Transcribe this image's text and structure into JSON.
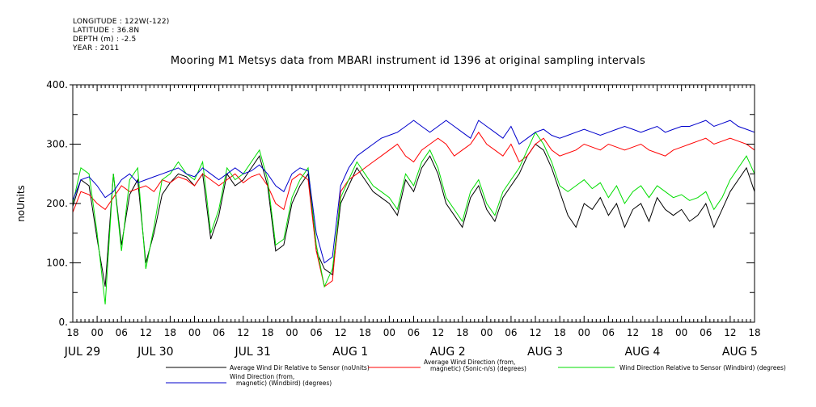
{
  "meta": {
    "longitude": "LONGITUDE : 122W(-122)",
    "latitude": "LATITUDE : 36.8N",
    "depth": "DEPTH (m) : -2.5",
    "year": "YEAR : 2011"
  },
  "chart_data": {
    "type": "line",
    "title": "Mooring M1 Metsys data from MBARI instrument id 1396 at original sampling intervals",
    "ylabel": "noUnits",
    "xlabel": "",
    "ylim": [
      0,
      400
    ],
    "yticks": [
      0,
      100,
      200,
      300,
      400
    ],
    "ytick_labels": [
      "0.",
      "100.",
      "200.",
      "300.",
      "400."
    ],
    "xlim_hours": [
      0,
      168
    ],
    "x_hour_ticks": [
      "18",
      "00",
      "06",
      "12",
      "18",
      "00",
      "06",
      "12",
      "18",
      "00",
      "06",
      "12",
      "18",
      "00",
      "06",
      "12",
      "18",
      "00",
      "06",
      "12",
      "18",
      "00",
      "06",
      "12",
      "18",
      "00",
      "06",
      "12",
      "18"
    ],
    "x_day_labels": [
      {
        "label": "JUL 29",
        "hour": 0
      },
      {
        "label": "JUL 30",
        "hour": 18
      },
      {
        "label": "JUL 31",
        "hour": 42
      },
      {
        "label": "AUG  1",
        "hour": 66
      },
      {
        "label": "AUG  2",
        "hour": 90
      },
      {
        "label": "AUG  3",
        "hour": 114
      },
      {
        "label": "AUG  4",
        "hour": 138
      },
      {
        "label": "AUG  5",
        "hour": 162
      }
    ],
    "grid": false,
    "legend_position": "bottom",
    "series": [
      {
        "name": "Average Wind Dir Relative to Sensor (noUnits)",
        "color": "#000000",
        "x": [
          0,
          2,
          4,
          6,
          8,
          10,
          12,
          14,
          16,
          18,
          20,
          22,
          24,
          26,
          28,
          30,
          32,
          34,
          36,
          38,
          40,
          42,
          44,
          46,
          48,
          50,
          52,
          54,
          56,
          58,
          60,
          62,
          64,
          66,
          68,
          70,
          72,
          74,
          76,
          78,
          80,
          82,
          84,
          86,
          88,
          90,
          92,
          94,
          96,
          98,
          100,
          102,
          104,
          106,
          108,
          110,
          112,
          114,
          116,
          118,
          120,
          122,
          124,
          126,
          128,
          130,
          132,
          134,
          136,
          138,
          140,
          142,
          144,
          146,
          148,
          150,
          152,
          154,
          156,
          158,
          160,
          162,
          164,
          166,
          168
        ],
        "y": [
          195,
          240,
          230,
          140,
          60,
          250,
          130,
          215,
          240,
          100,
          150,
          215,
          235,
          250,
          245,
          230,
          250,
          140,
          180,
          250,
          230,
          240,
          260,
          280,
          230,
          120,
          130,
          200,
          230,
          250,
          120,
          90,
          80,
          200,
          230,
          260,
          240,
          220,
          210,
          200,
          180,
          240,
          220,
          260,
          280,
          250,
          200,
          180,
          160,
          210,
          230,
          190,
          170,
          210,
          230,
          250,
          280,
          300,
          290,
          260,
          220,
          180,
          160,
          200,
          190,
          210,
          180,
          200,
          160,
          190,
          200,
          170,
          210,
          190,
          180,
          190,
          170,
          180,
          200,
          160,
          190,
          220,
          240,
          260,
          220
        ]
      },
      {
        "name": "Average Wind Direction (from, magnetic) (Sonic-n/s) (degrees)",
        "color": "#ff0000",
        "x": [
          0,
          2,
          4,
          6,
          8,
          10,
          12,
          14,
          16,
          18,
          20,
          22,
          24,
          26,
          28,
          30,
          32,
          34,
          36,
          38,
          40,
          42,
          44,
          46,
          48,
          50,
          52,
          54,
          56,
          58,
          60,
          62,
          64,
          66,
          68,
          70,
          72,
          74,
          76,
          78,
          80,
          82,
          84,
          86,
          88,
          90,
          92,
          94,
          96,
          98,
          100,
          102,
          104,
          106,
          108,
          110,
          112,
          114,
          116,
          118,
          120,
          122,
          124,
          126,
          128,
          130,
          132,
          134,
          136,
          138,
          140,
          142,
          144,
          146,
          148,
          150,
          152,
          154,
          156,
          158,
          160,
          162,
          164,
          166,
          168
        ],
        "y": [
          185,
          220,
          215,
          200,
          190,
          210,
          230,
          220,
          225,
          230,
          220,
          240,
          235,
          245,
          240,
          230,
          250,
          240,
          230,
          240,
          250,
          235,
          245,
          250,
          230,
          200,
          190,
          240,
          250,
          240,
          120,
          60,
          70,
          220,
          240,
          250,
          260,
          270,
          280,
          290,
          300,
          280,
          270,
          290,
          300,
          310,
          300,
          280,
          290,
          300,
          320,
          300,
          290,
          280,
          300,
          270,
          280,
          300,
          310,
          290,
          280,
          285,
          290,
          300,
          295,
          290,
          300,
          295,
          290,
          295,
          300,
          290,
          285,
          280,
          290,
          295,
          300,
          305,
          310,
          300,
          305,
          310,
          305,
          300,
          290
        ]
      },
      {
        "name": "Wind Direction Relative to Sensor (Windbird) (degrees)",
        "color": "#00dd00",
        "x": [
          0,
          2,
          4,
          6,
          8,
          10,
          12,
          14,
          16,
          18,
          20,
          22,
          24,
          26,
          28,
          30,
          32,
          34,
          36,
          38,
          40,
          42,
          44,
          46,
          48,
          50,
          52,
          54,
          56,
          58,
          60,
          62,
          64,
          66,
          68,
          70,
          72,
          74,
          76,
          78,
          80,
          82,
          84,
          86,
          88,
          90,
          92,
          94,
          96,
          98,
          100,
          102,
          104,
          106,
          108,
          110,
          112,
          114,
          116,
          118,
          120,
          122,
          124,
          126,
          128,
          130,
          132,
          134,
          136,
          138,
          140,
          142,
          144,
          146,
          148,
          150,
          152,
          154,
          156,
          158,
          160,
          162,
          164,
          166,
          168
        ],
        "y": [
          200,
          260,
          250,
          150,
          30,
          250,
          120,
          240,
          260,
          90,
          160,
          240,
          250,
          270,
          250,
          240,
          270,
          150,
          190,
          260,
          240,
          250,
          270,
          290,
          240,
          130,
          140,
          210,
          240,
          260,
          130,
          60,
          90,
          210,
          240,
          270,
          250,
          230,
          220,
          210,
          190,
          250,
          230,
          270,
          290,
          260,
          210,
          190,
          170,
          220,
          240,
          200,
          180,
          220,
          240,
          260,
          290,
          320,
          300,
          270,
          230,
          220,
          230,
          240,
          225,
          235,
          210,
          230,
          200,
          220,
          230,
          210,
          230,
          220,
          210,
          215,
          205,
          210,
          220,
          190,
          210,
          240,
          260,
          280,
          250
        ]
      },
      {
        "name": "Wind Direction (from, magnetic) (Windbird) (degrees)",
        "color": "#0000cc",
        "x": [
          0,
          2,
          4,
          6,
          8,
          10,
          12,
          14,
          16,
          18,
          20,
          22,
          24,
          26,
          28,
          30,
          32,
          34,
          36,
          38,
          40,
          42,
          44,
          46,
          48,
          50,
          52,
          54,
          56,
          58,
          60,
          62,
          64,
          66,
          68,
          70,
          72,
          74,
          76,
          78,
          80,
          82,
          84,
          86,
          88,
          90,
          92,
          94,
          96,
          98,
          100,
          102,
          104,
          106,
          108,
          110,
          112,
          114,
          116,
          118,
          120,
          122,
          124,
          126,
          128,
          130,
          132,
          134,
          136,
          138,
          140,
          142,
          144,
          146,
          148,
          150,
          152,
          154,
          156,
          158,
          160,
          162,
          164,
          166,
          168
        ],
        "y": [
          205,
          240,
          245,
          230,
          210,
          220,
          240,
          250,
          235,
          240,
          245,
          250,
          255,
          260,
          250,
          245,
          260,
          250,
          240,
          250,
          260,
          250,
          255,
          265,
          250,
          230,
          220,
          250,
          260,
          255,
          150,
          100,
          110,
          230,
          260,
          280,
          290,
          300,
          310,
          315,
          320,
          330,
          340,
          330,
          320,
          330,
          340,
          330,
          320,
          310,
          340,
          330,
          320,
          310,
          330,
          300,
          310,
          320,
          325,
          315,
          310,
          315,
          320,
          325,
          320,
          315,
          320,
          325,
          330,
          325,
          320,
          325,
          330,
          320,
          325,
          330,
          330,
          335,
          340,
          330,
          335,
          340,
          330,
          325,
          320
        ]
      }
    ]
  }
}
